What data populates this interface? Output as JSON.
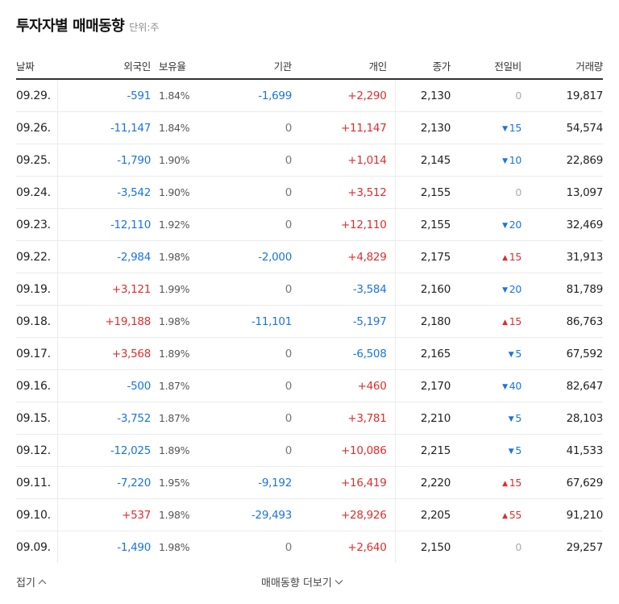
{
  "header": {
    "title": "투자자별 매매동향",
    "unit": "단위:주"
  },
  "columns": {
    "date": "날짜",
    "foreign": "외국인",
    "ratio": "보유율",
    "institution": "기관",
    "individual": "개인",
    "close": "종가",
    "change": "전일비",
    "volume": "거래량"
  },
  "rows": [
    {
      "date": "09.29.",
      "foreign": "-591",
      "ratio": "1.84%",
      "institution": "-1,699",
      "individual": "+2,290",
      "close": "2,130",
      "change": "0",
      "change_dir": "flat",
      "volume": "19,817"
    },
    {
      "date": "09.26.",
      "foreign": "-11,147",
      "ratio": "1.84%",
      "institution": "0",
      "individual": "+11,147",
      "close": "2,130",
      "change": "15",
      "change_dir": "down",
      "volume": "54,574"
    },
    {
      "date": "09.25.",
      "foreign": "-1,790",
      "ratio": "1.90%",
      "institution": "0",
      "individual": "+1,014",
      "close": "2,145",
      "change": "10",
      "change_dir": "down",
      "volume": "22,869"
    },
    {
      "date": "09.24.",
      "foreign": "-3,542",
      "ratio": "1.90%",
      "institution": "0",
      "individual": "+3,512",
      "close": "2,155",
      "change": "0",
      "change_dir": "flat",
      "volume": "13,097"
    },
    {
      "date": "09.23.",
      "foreign": "-12,110",
      "ratio": "1.92%",
      "institution": "0",
      "individual": "+12,110",
      "close": "2,155",
      "change": "20",
      "change_dir": "down",
      "volume": "32,469"
    },
    {
      "date": "09.22.",
      "foreign": "-2,984",
      "ratio": "1.98%",
      "institution": "-2,000",
      "individual": "+4,829",
      "close": "2,175",
      "change": "15",
      "change_dir": "up",
      "volume": "31,913"
    },
    {
      "date": "09.19.",
      "foreign": "+3,121",
      "ratio": "1.99%",
      "institution": "0",
      "individual": "-3,584",
      "close": "2,160",
      "change": "20",
      "change_dir": "down",
      "volume": "81,789"
    },
    {
      "date": "09.18.",
      "foreign": "+19,188",
      "ratio": "1.98%",
      "institution": "-11,101",
      "individual": "-5,197",
      "close": "2,180",
      "change": "15",
      "change_dir": "up",
      "volume": "86,763"
    },
    {
      "date": "09.17.",
      "foreign": "+3,568",
      "ratio": "1.89%",
      "institution": "0",
      "individual": "-6,508",
      "close": "2,165",
      "change": "5",
      "change_dir": "down",
      "volume": "67,592"
    },
    {
      "date": "09.16.",
      "foreign": "-500",
      "ratio": "1.87%",
      "institution": "0",
      "individual": "+460",
      "close": "2,170",
      "change": "40",
      "change_dir": "down",
      "volume": "82,647"
    },
    {
      "date": "09.15.",
      "foreign": "-3,752",
      "ratio": "1.87%",
      "institution": "0",
      "individual": "+3,781",
      "close": "2,210",
      "change": "5",
      "change_dir": "down",
      "volume": "28,103"
    },
    {
      "date": "09.12.",
      "foreign": "-12,025",
      "ratio": "1.89%",
      "institution": "0",
      "individual": "+10,086",
      "close": "2,215",
      "change": "5",
      "change_dir": "down",
      "volume": "41,533"
    },
    {
      "date": "09.11.",
      "foreign": "-7,220",
      "ratio": "1.95%",
      "institution": "-9,192",
      "individual": "+16,419",
      "close": "2,220",
      "change": "15",
      "change_dir": "up",
      "volume": "67,629"
    },
    {
      "date": "09.10.",
      "foreign": "+537",
      "ratio": "1.98%",
      "institution": "-29,493",
      "individual": "+28,926",
      "close": "2,205",
      "change": "55",
      "change_dir": "up",
      "volume": "91,210"
    },
    {
      "date": "09.09.",
      "foreign": "-1,490",
      "ratio": "1.98%",
      "institution": "0",
      "individual": "+2,640",
      "close": "2,150",
      "change": "0",
      "change_dir": "flat",
      "volume": "29,257"
    }
  ],
  "footer": {
    "fold_label": "접기",
    "more_label": "매매동향 더보기"
  },
  "colors": {
    "up": "#e12c2c",
    "down": "#1a73e8",
    "neutral": "#777777"
  },
  "icons": {
    "fold": "chevron-up-icon",
    "more": "chevron-down-icon",
    "change_up": "triangle-up-icon",
    "change_down": "triangle-down-icon"
  }
}
